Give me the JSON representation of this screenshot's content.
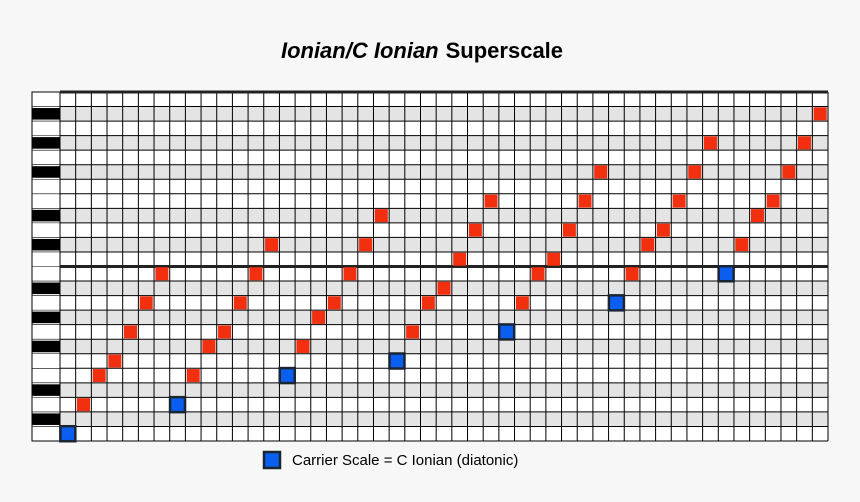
{
  "title": {
    "italic": "Ionian/C Ionian",
    "plain": "Superscale"
  },
  "legend": "Carrier Scale = C Ionian (diatonic)",
  "grid": {
    "columns": 49,
    "rows": 24,
    "black_key_rows": [
      1,
      3,
      6,
      8,
      10,
      13,
      15,
      18,
      20,
      22
    ],
    "octave_rows": [
      12
    ]
  },
  "groups": [
    [
      0,
      2,
      4,
      5,
      7,
      9,
      11
    ],
    [
      2,
      4,
      6,
      7,
      9,
      11,
      13
    ],
    [
      4,
      6,
      8,
      9,
      11,
      13,
      15
    ],
    [
      5,
      7,
      9,
      10,
      12,
      14,
      16
    ],
    [
      7,
      9,
      11,
      12,
      14,
      16,
      18
    ],
    [
      9,
      11,
      13,
      14,
      16,
      18,
      20
    ],
    [
      11,
      13,
      15,
      16,
      18,
      20,
      22
    ]
  ]
}
